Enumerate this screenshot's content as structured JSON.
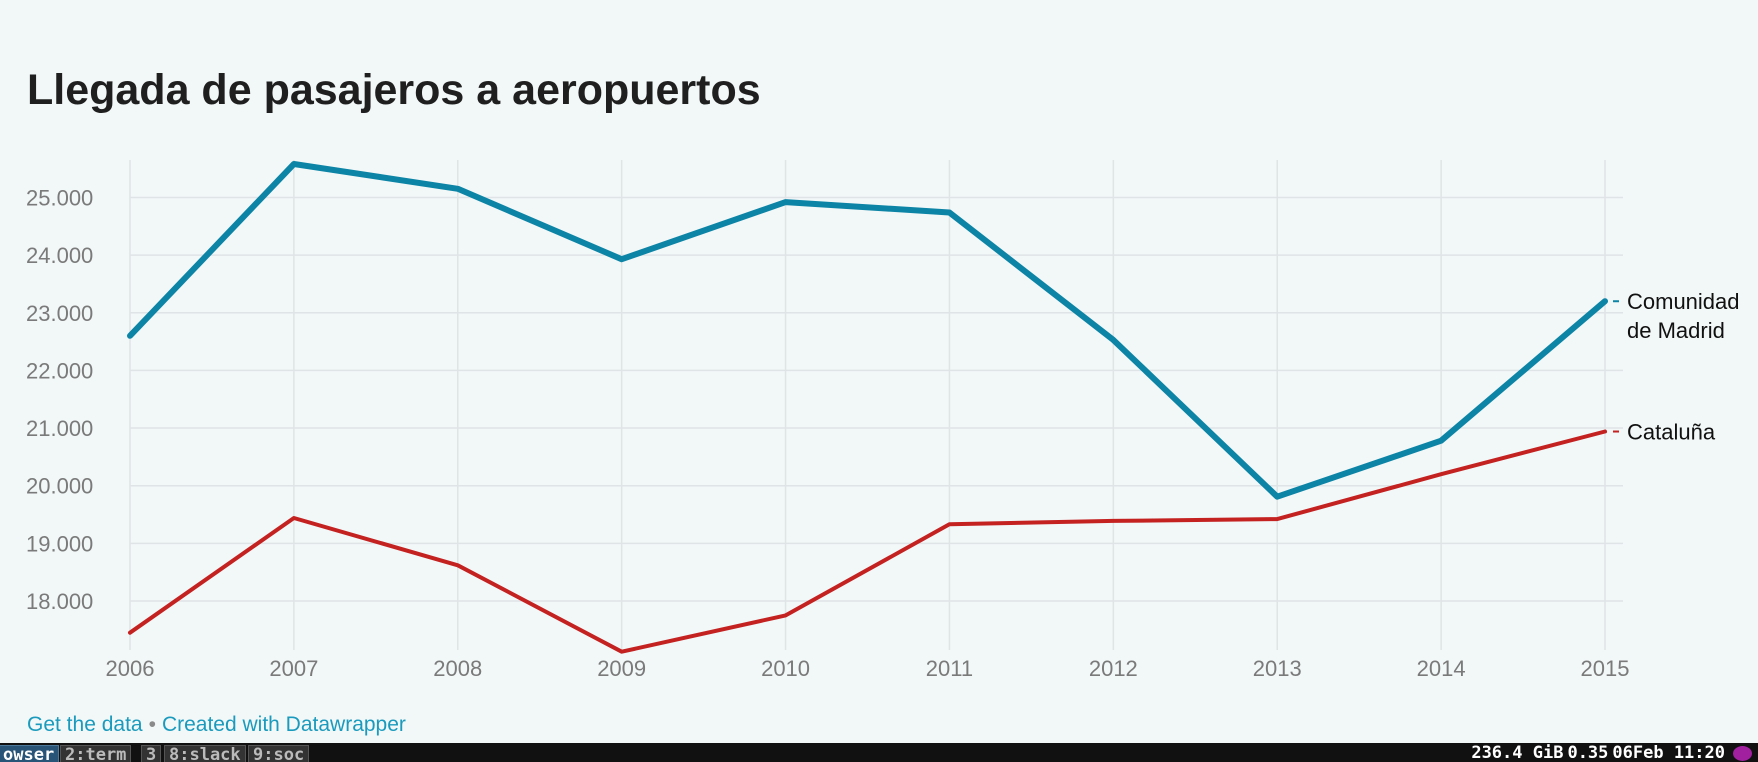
{
  "title": "Llegada de pasajeros a aeropuertos",
  "chart_data": {
    "type": "line",
    "title": "Llegada de pasajeros a aeropuertos",
    "xlabel": "",
    "ylabel": "",
    "x": [
      2006,
      2007,
      2008,
      2009,
      2010,
      2011,
      2012,
      2013,
      2014,
      2015
    ],
    "x_tick_labels": [
      "2006",
      "2007",
      "2008",
      "2009",
      "2010",
      "2011",
      "2012",
      "2013",
      "2014",
      "2015"
    ],
    "y_ticks": [
      18000,
      19000,
      20000,
      21000,
      22000,
      23000,
      24000,
      25000
    ],
    "y_tick_labels": [
      "18.000",
      "19.000",
      "20.000",
      "21.000",
      "22.000",
      "23.000",
      "24.000",
      "25.000"
    ],
    "ylim": [
      17150,
      25650
    ],
    "grid": true,
    "legend": "inline labels at line ends",
    "series": [
      {
        "name": "Comunidad de Madrid",
        "label_lines": [
          "Comunidad",
          "de Madrid"
        ],
        "color": "#0b84a5",
        "values": [
          22600,
          25580,
          25150,
          23930,
          24920,
          24740,
          22530,
          19810,
          20780,
          23200
        ]
      },
      {
        "name": "Cataluña",
        "label_lines": [
          "Cataluña"
        ],
        "color": "#c42121",
        "values": [
          17450,
          19440,
          18620,
          17120,
          17750,
          19330,
          19390,
          19420,
          20200,
          20940
        ]
      }
    ]
  },
  "footer": {
    "get_data": "Get the data",
    "separator": "•",
    "created_with": "Created with Datawrapper"
  },
  "taskbar": {
    "workspaces": [
      {
        "label": "owser",
        "active": true
      },
      {
        "label": "2:term",
        "active": false
      },
      {
        "label": "3",
        "active": false
      },
      {
        "label": "8:slack",
        "active": false
      },
      {
        "label": "9:soc",
        "active": false
      }
    ],
    "disk": "236.4 GiB",
    "load": "0.35",
    "datetime": "06Feb 11:20"
  }
}
